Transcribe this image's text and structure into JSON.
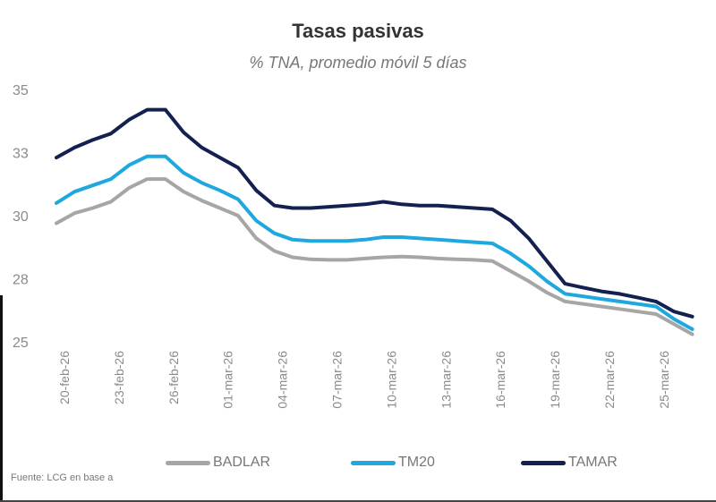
{
  "chart_data": {
    "type": "line",
    "title": "Tasas pasivas",
    "subtitle": "% TNA, promedio móvil 5 días",
    "xlabel": "",
    "ylabel": "",
    "ylim": [
      25,
      35
    ],
    "grid": false,
    "legend_position": "bottom",
    "yticks": [
      {
        "value": 35,
        "label": "35"
      },
      {
        "value": 32.5,
        "label": "33"
      },
      {
        "value": 30,
        "label": "30"
      },
      {
        "value": 27.5,
        "label": "28"
      },
      {
        "value": 25,
        "label": "25"
      }
    ],
    "x_start": "20-feb-26",
    "xticks": [
      {
        "day": 0,
        "label": "20-feb-26"
      },
      {
        "day": 3,
        "label": "23-feb-26"
      },
      {
        "day": 6,
        "label": "26-feb-26"
      },
      {
        "day": 9,
        "label": "01-mar-26"
      },
      {
        "day": 12,
        "label": "04-mar-26"
      },
      {
        "day": 15,
        "label": "07-mar-26"
      },
      {
        "day": 18,
        "label": "10-mar-26"
      },
      {
        "day": 21,
        "label": "13-mar-26"
      },
      {
        "day": 24,
        "label": "16-mar-26"
      },
      {
        "day": 27,
        "label": "19-mar-26"
      },
      {
        "day": 30,
        "label": "22-mar-26"
      },
      {
        "day": 33,
        "label": "25-mar-26"
      }
    ],
    "series": [
      {
        "name": "BADLAR",
        "color": "#a6a6a6",
        "values": [
          29.7,
          30.1,
          30.3,
          30.55,
          31.1,
          31.45,
          31.45,
          30.95,
          30.6,
          30.3,
          30.0,
          29.1,
          28.6,
          28.35,
          28.27,
          28.25,
          28.25,
          28.3,
          28.35,
          28.38,
          28.35,
          28.3,
          28.27,
          28.25,
          28.2,
          27.8,
          27.4,
          26.95,
          26.6,
          26.5,
          26.4,
          26.3,
          26.2,
          26.1,
          25.7,
          25.3
        ]
      },
      {
        "name": "TM20",
        "color": "#1fa8e0",
        "values": [
          30.5,
          30.95,
          31.2,
          31.45,
          32.0,
          32.35,
          32.35,
          31.7,
          31.3,
          31.0,
          30.65,
          29.8,
          29.3,
          29.05,
          29.0,
          29.0,
          29.0,
          29.05,
          29.15,
          29.15,
          29.1,
          29.05,
          29.0,
          28.95,
          28.9,
          28.5,
          28.0,
          27.4,
          26.9,
          26.8,
          26.7,
          26.6,
          26.5,
          26.4,
          25.9,
          25.5
        ]
      },
      {
        "name": "TAMAR",
        "color": "#14204f",
        "values": [
          32.3,
          32.7,
          33.0,
          33.25,
          33.8,
          34.2,
          34.2,
          33.3,
          32.7,
          32.3,
          31.9,
          31.0,
          30.4,
          30.3,
          30.3,
          30.35,
          30.4,
          30.45,
          30.55,
          30.45,
          30.4,
          30.4,
          30.35,
          30.3,
          30.25,
          29.8,
          29.1,
          28.2,
          27.3,
          27.15,
          27.0,
          26.9,
          26.75,
          26.6,
          26.2,
          26.0
        ]
      }
    ],
    "source": "Fuente: LCG en base a"
  }
}
